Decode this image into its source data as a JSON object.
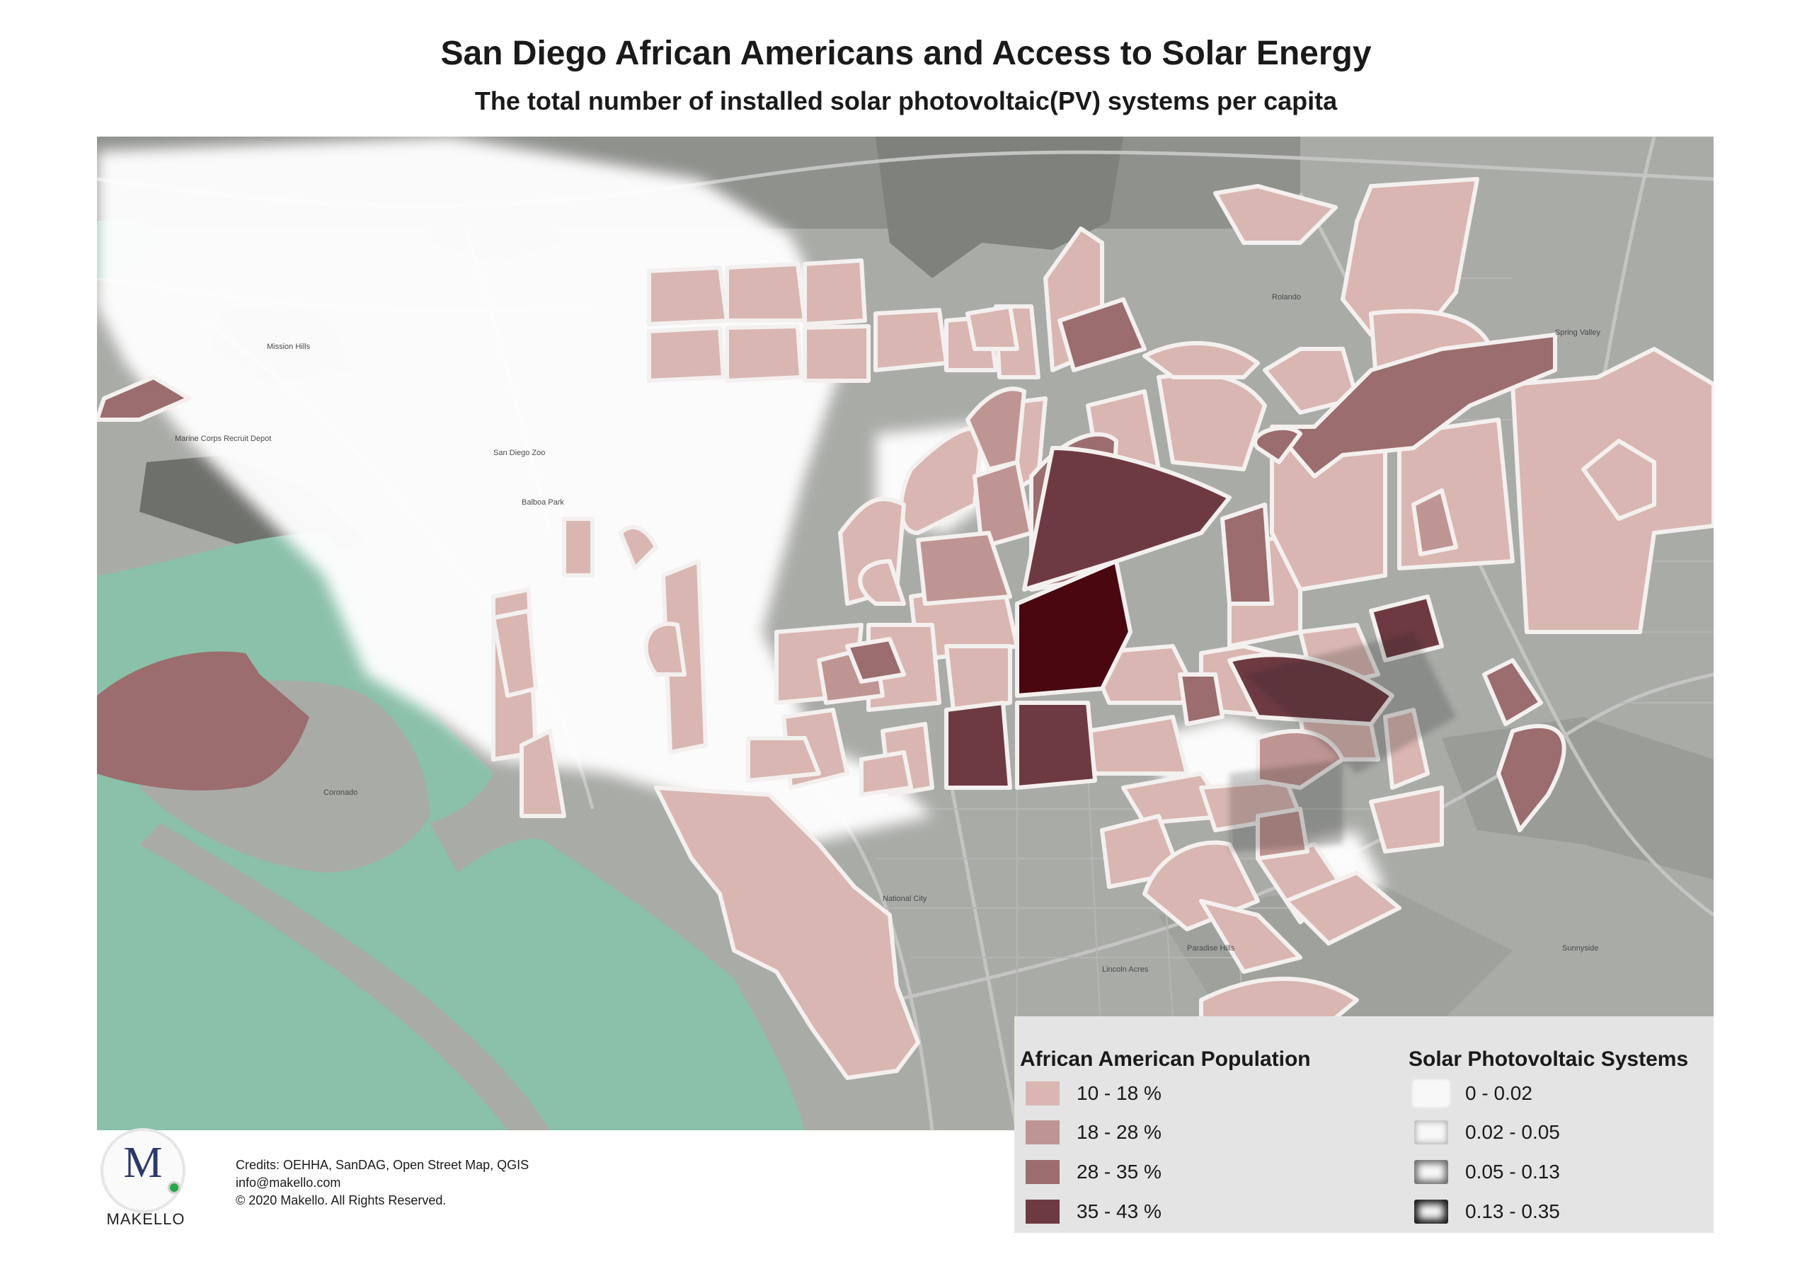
{
  "title": "San Diego African Americans and Access to Solar Energy",
  "subtitle": "The total number of installed solar photovoltaic(PV) systems per capita",
  "map": {
    "colors": {
      "land": "#a9aba7",
      "water": "#8bc0aa",
      "aa_10_18": "#d9b6b1",
      "aa_18_28": "#bf9593",
      "aa_28_35": "#9b6d6e",
      "aa_35_43": "#6e3a42",
      "aa_max": "#4a0710",
      "pv_glow": "#ffffff"
    },
    "place_labels": [
      "Mission Hills",
      "Marine Corps Recruit Depot",
      "Balboa Park",
      "San Diego Zoo",
      "Coronado",
      "National City",
      "Paradise Hills",
      "Lincoln Acres",
      "Spring Valley",
      "Rolando",
      "Sunnyside"
    ]
  },
  "legend": {
    "population": {
      "heading": "African American Population",
      "items": [
        {
          "label": "10 - 18 %",
          "color": "#d9b6b1"
        },
        {
          "label": "18 - 28 %",
          "color": "#bf9593"
        },
        {
          "label": "28 - 35 %",
          "color": "#9b6d6e"
        },
        {
          "label": "35 - 43 %",
          "color": "#6e3a42"
        }
      ]
    },
    "solar": {
      "heading": "Solar Photovoltaic Systems",
      "items": [
        {
          "label": "0 - 0.02",
          "glow": "#ffffff",
          "shadow": "0 0 4px 2px #ffffff"
        },
        {
          "label": "0.02 - 0.05",
          "glow": "#bdbdbd",
          "shadow": "inset 0 0 8px 3px #b8b8b8"
        },
        {
          "label": "0.05 - 0.13",
          "glow": "#6e6e6e",
          "shadow": "inset 0 0 10px 5px #6a6a6a"
        },
        {
          "label": "0.13 - 0.35",
          "glow": "#111111",
          "shadow": "inset 0 0 11px 6px #151515"
        }
      ]
    }
  },
  "logo": {
    "letter": "M",
    "name": "MAKELLO"
  },
  "credits": [
    "Credits: OEHHA, SanDAG, Open Street Map, QGIS",
    "info@makello.com",
    "© 2020 Makello. All Rights Reserved."
  ]
}
